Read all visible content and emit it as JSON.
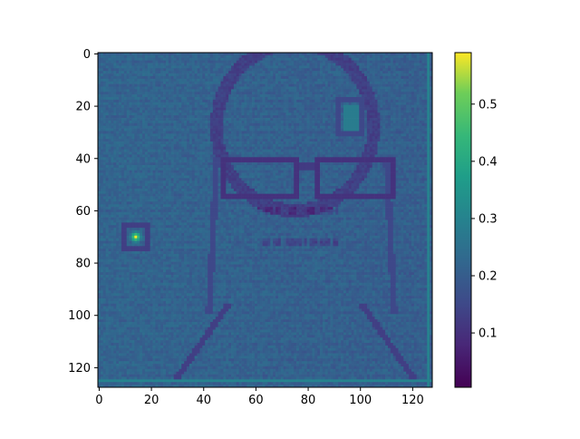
{
  "chart_data": {
    "type": "heatmap",
    "title": "",
    "xlabel": "",
    "ylabel": "",
    "colormap": "viridis",
    "image_size": [
      128,
      128
    ],
    "x_ticks": [
      0,
      20,
      40,
      60,
      80,
      100,
      120
    ],
    "y_ticks": [
      0,
      20,
      40,
      60,
      80,
      100,
      120
    ],
    "x_range": [
      -0.5,
      127.5
    ],
    "y_range": [
      127.5,
      -0.5
    ],
    "colorbar": {
      "range": [
        0.005,
        0.59
      ],
      "ticks": [
        0.1,
        0.2,
        0.3,
        0.4,
        0.5
      ]
    },
    "base_level": 0.22,
    "features": [
      {
        "kind": "head-outline",
        "value": 0.13
      },
      {
        "kind": "glasses",
        "value": 0.1
      },
      {
        "kind": "bright-spot",
        "x": 14,
        "y": 70,
        "value": 0.59
      },
      {
        "kind": "square-frame",
        "x": 97,
        "y": 25,
        "value": 0.28
      }
    ]
  }
}
